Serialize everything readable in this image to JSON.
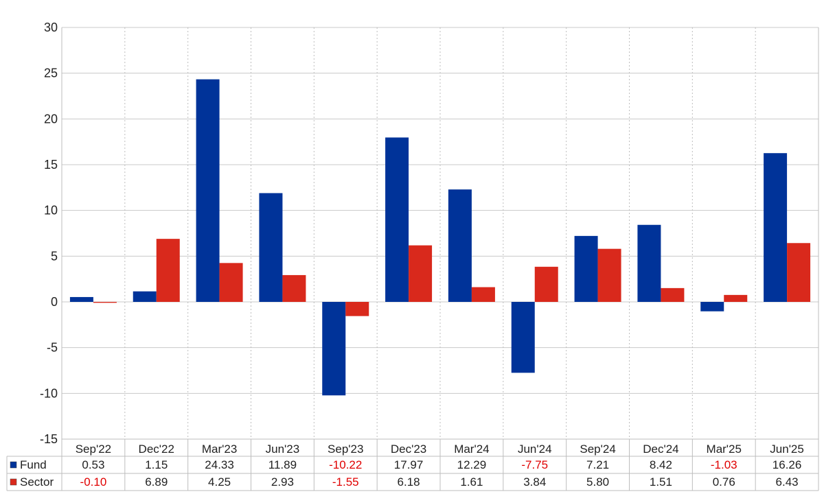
{
  "chart_data": {
    "type": "bar",
    "categories": [
      "Sep'22",
      "Dec'22",
      "Mar'23",
      "Jun'23",
      "Sep'23",
      "Dec'23",
      "Mar'24",
      "Jun'24",
      "Sep'24",
      "Dec'24",
      "Mar'25",
      "Jun'25"
    ],
    "series": [
      {
        "name": "Fund",
        "color": "#003399",
        "values": [
          0.53,
          1.15,
          24.33,
          11.89,
          -10.22,
          17.97,
          12.29,
          -7.75,
          7.21,
          8.42,
          -1.03,
          16.26
        ],
        "labels": [
          "0.53",
          "1.15",
          "24.33",
          "11.89",
          "-10.22",
          "17.97",
          "12.29",
          "-7.75",
          "7.21",
          "8.42",
          "-1.03",
          "16.26"
        ]
      },
      {
        "name": "Sector",
        "color": "#d9291c",
        "values": [
          -0.1,
          6.89,
          4.25,
          2.93,
          -1.55,
          6.18,
          1.61,
          3.84,
          5.8,
          1.51,
          0.76,
          6.43
        ],
        "labels": [
          "-0.10",
          "6.89",
          "4.25",
          "2.93",
          "-1.55",
          "6.18",
          "1.61",
          "3.84",
          "5.80",
          "1.51",
          "0.76",
          "6.43"
        ]
      }
    ],
    "ylim": [
      -15,
      30
    ],
    "yticks": [
      30,
      25,
      20,
      15,
      10,
      5,
      0,
      -5,
      -10,
      -15
    ],
    "title": "",
    "xlabel": "",
    "ylabel": "",
    "grid": true,
    "legend": "data table below chart",
    "negative_value_color": "#e00000"
  }
}
